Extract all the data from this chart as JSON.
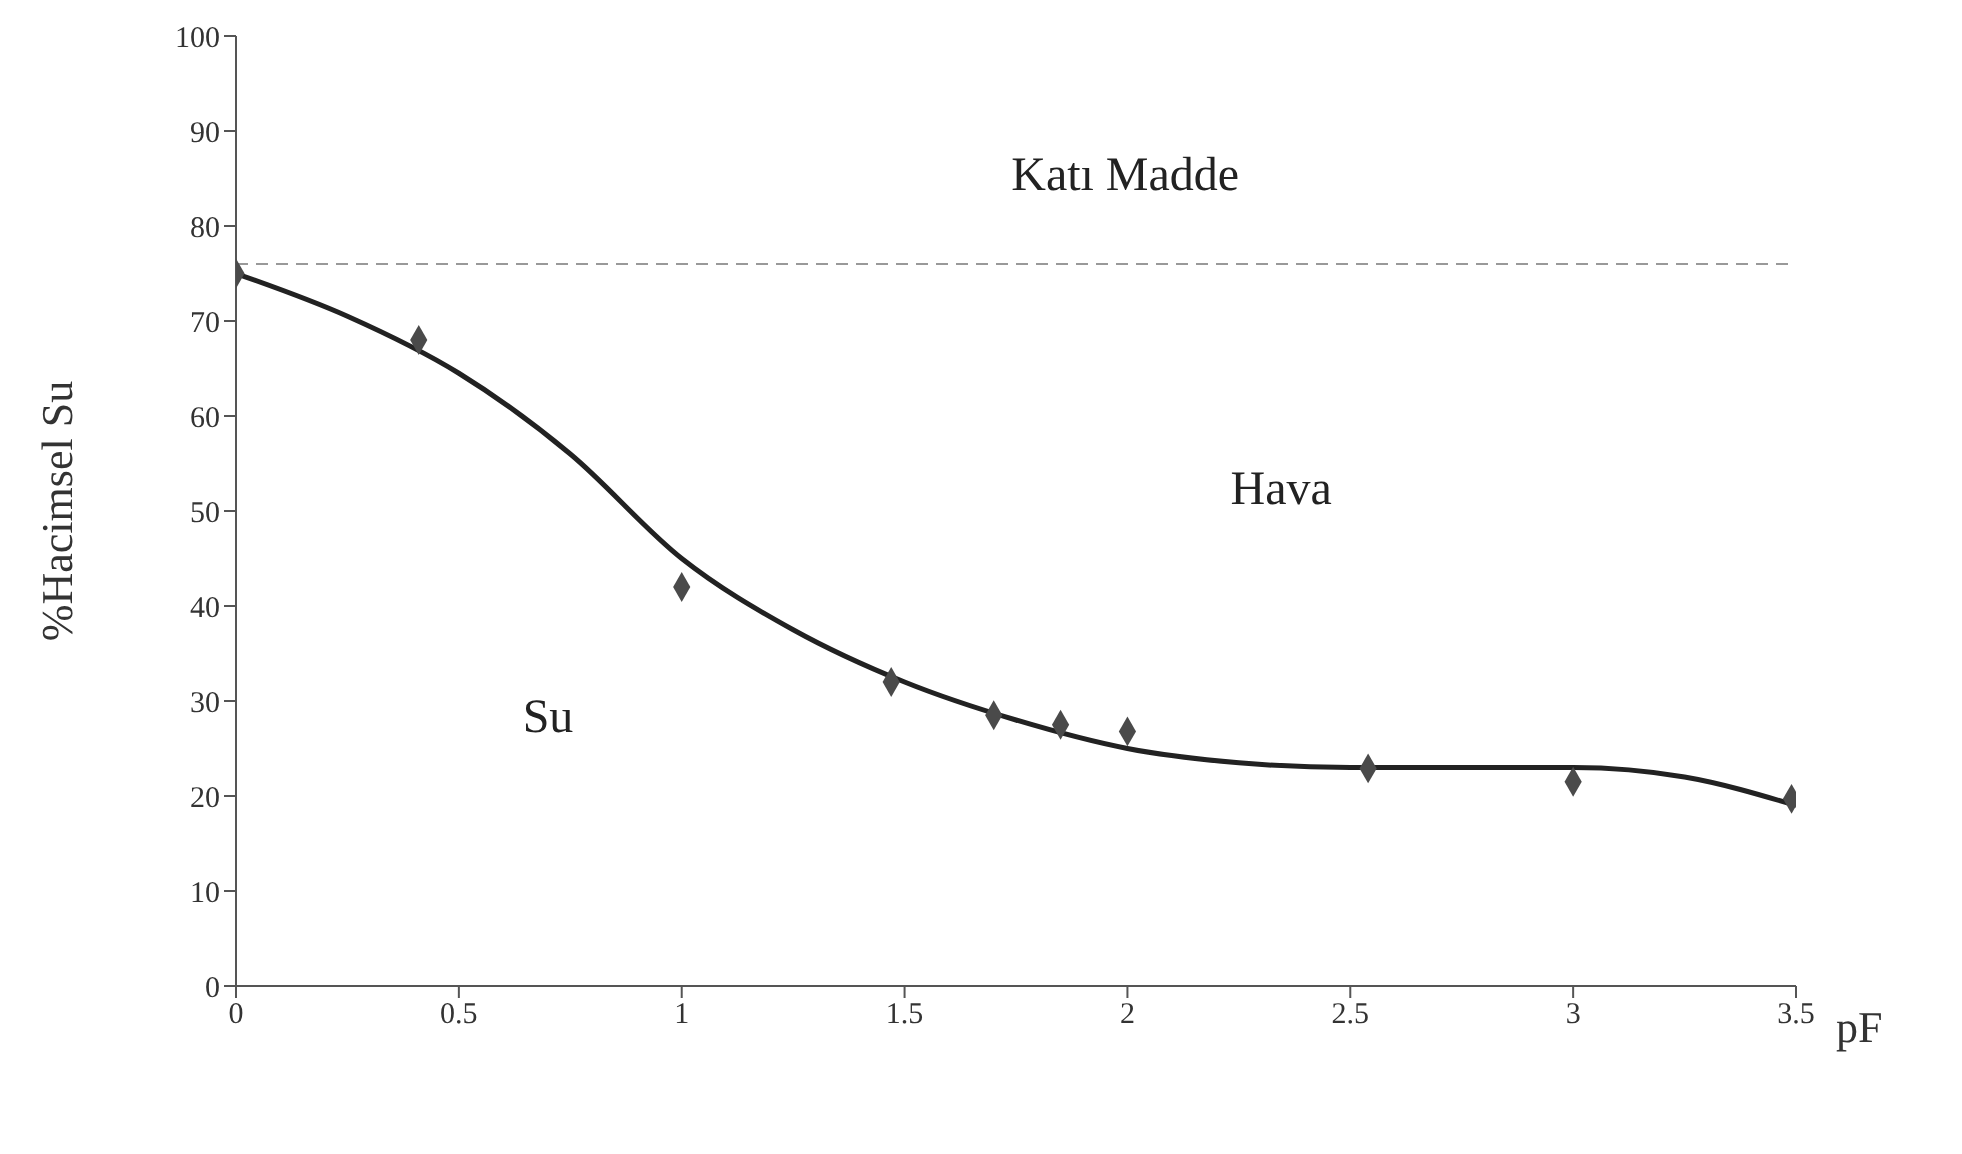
{
  "chart_data": {
    "type": "scatter",
    "xlabel": "pF",
    "ylabel": "%Hacimsel Su",
    "marker": "diamond",
    "xlim": [
      0,
      3.5
    ],
    "xticks": [
      0,
      0.5,
      1,
      1.5,
      2,
      2.5,
      3,
      3.5
    ],
    "ylim": [
      0,
      100
    ],
    "yticks": [
      0,
      10,
      20,
      30,
      40,
      50,
      60,
      70,
      80,
      90,
      100
    ],
    "series": [
      {
        "color": "#4a4a4a",
        "x": [
          0,
          0.41,
          1.0,
          1.47,
          1.7,
          1.85,
          2.0,
          2.54,
          3.0,
          3.49
        ],
        "values": [
          75,
          68,
          42,
          32,
          28.5,
          27.5,
          26.8,
          22.9,
          21.5,
          19.7
        ]
      },
      {
        "type": "line",
        "color": "#222222",
        "marker": "none",
        "x": [
          0,
          0.25,
          0.5,
          0.75,
          1,
          1.25,
          1.5,
          1.75,
          2,
          2.25,
          2.5,
          2.75,
          3,
          3.25,
          3.5
        ],
        "values": [
          75,
          70.5,
          64.5,
          56,
          45,
          37.5,
          32,
          28,
          25,
          23.5,
          23,
          23,
          23,
          22,
          19
        ]
      }
    ],
    "ref_lines": [
      {
        "axis": "y",
        "value": 76,
        "line_style": "dashed",
        "color": "#999999"
      }
    ],
    "annotations": [
      "Katı Madde",
      "Hava",
      "Su"
    ]
  }
}
